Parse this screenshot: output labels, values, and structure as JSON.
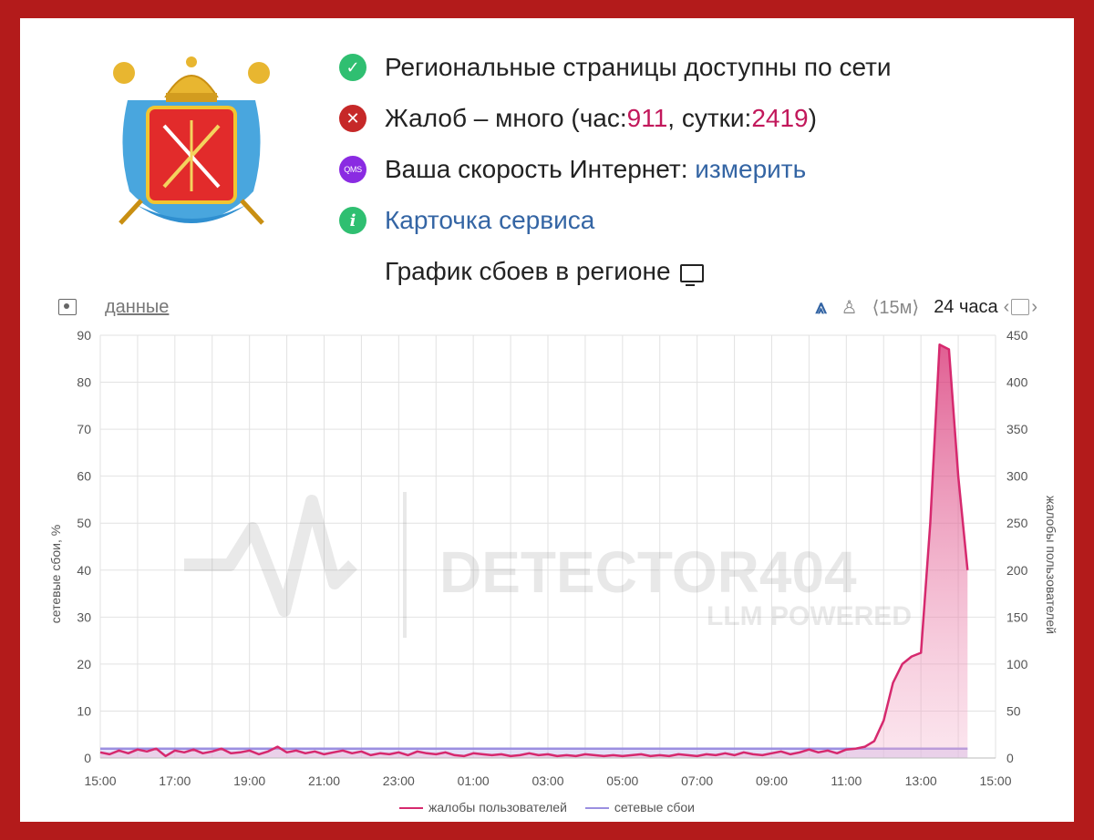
{
  "status": {
    "row1": "Региональные страницы доступны по сети",
    "row2_prefix": "Жалоб – много (час: ",
    "row2_hour": "911",
    "row2_mid": ", сутки: ",
    "row2_day": "2419",
    "row2_suffix": ")",
    "row3_prefix": "Ваша скорость Интернет: ",
    "row3_link": "измерить",
    "row3_icon": "QMS",
    "row4_link": "Карточка сервиса",
    "row4_icon": "i",
    "row5": "График сбоев в регионе"
  },
  "toolbar": {
    "data_link": "данные",
    "interval": "⟨15м⟩",
    "period": "24 часа"
  },
  "watermark": {
    "line1": "DETECTOR404",
    "line2": "LLM POWERED"
  },
  "colors": {
    "complaints": "#d6296e",
    "network": "#9b8fe0",
    "ok": "#2fbf71",
    "bad": "#c62828"
  },
  "chart_data": {
    "type": "area",
    "x": [
      "15:00",
      "15:15",
      "15:30",
      "15:45",
      "16:00",
      "16:15",
      "16:30",
      "16:45",
      "17:00",
      "17:15",
      "17:30",
      "17:45",
      "18:00",
      "18:15",
      "18:30",
      "18:45",
      "19:00",
      "19:15",
      "19:30",
      "19:45",
      "20:00",
      "20:15",
      "20:30",
      "20:45",
      "21:00",
      "21:15",
      "21:30",
      "21:45",
      "22:00",
      "22:15",
      "22:30",
      "22:45",
      "23:00",
      "23:15",
      "23:30",
      "23:45",
      "00:00",
      "00:15",
      "00:30",
      "00:45",
      "01:00",
      "01:15",
      "01:30",
      "01:45",
      "02:00",
      "02:15",
      "02:30",
      "02:45",
      "03:00",
      "03:15",
      "03:30",
      "03:45",
      "04:00",
      "04:15",
      "04:30",
      "04:45",
      "05:00",
      "05:15",
      "05:30",
      "05:45",
      "06:00",
      "06:15",
      "06:30",
      "06:45",
      "07:00",
      "07:15",
      "07:30",
      "07:45",
      "08:00",
      "08:15",
      "08:30",
      "08:45",
      "09:00",
      "09:15",
      "09:30",
      "09:45",
      "10:00",
      "10:15",
      "10:30",
      "10:45",
      "11:00",
      "11:15",
      "11:30",
      "11:45",
      "12:00",
      "12:15",
      "12:30",
      "12:45",
      "13:00",
      "13:15",
      "13:30",
      "13:45",
      "14:00",
      "14:15"
    ],
    "x_ticks": [
      "15:00",
      "17:00",
      "19:00",
      "21:00",
      "23:00",
      "01:00",
      "03:00",
      "05:00",
      "07:00",
      "09:00",
      "11:00",
      "13:00",
      "15:00"
    ],
    "series": [
      {
        "name": "жалобы пользователей",
        "axis": "right",
        "values": [
          6,
          4,
          8,
          5,
          9,
          7,
          10,
          2,
          8,
          6,
          9,
          5,
          7,
          10,
          5,
          6,
          8,
          4,
          7,
          12,
          6,
          8,
          5,
          7,
          4,
          6,
          8,
          5,
          7,
          3,
          5,
          4,
          6,
          3,
          7,
          5,
          4,
          6,
          3,
          2,
          5,
          4,
          3,
          4,
          2,
          3,
          5,
          3,
          4,
          2,
          3,
          2,
          4,
          3,
          2,
          3,
          2,
          3,
          4,
          2,
          3,
          2,
          4,
          3,
          2,
          4,
          3,
          5,
          3,
          6,
          4,
          3,
          5,
          7,
          4,
          6,
          9,
          6,
          8,
          5,
          9,
          10,
          12,
          18,
          40,
          80,
          100,
          108,
          112,
          250,
          440,
          435,
          300,
          200
        ]
      },
      {
        "name": "сетевые сбои",
        "axis": "left",
        "values": [
          2,
          2,
          2,
          2,
          2,
          2,
          2,
          2,
          2,
          2,
          2,
          2,
          2,
          2,
          2,
          2,
          2,
          2,
          2,
          2,
          2,
          2,
          2,
          2,
          2,
          2,
          2,
          2,
          2,
          2,
          2,
          2,
          2,
          2,
          2,
          2,
          2,
          2,
          2,
          2,
          2,
          2,
          2,
          2,
          2,
          2,
          2,
          2,
          2,
          2,
          2,
          2,
          2,
          2,
          2,
          2,
          2,
          2,
          2,
          2,
          2,
          2,
          2,
          2,
          2,
          2,
          2,
          2,
          2,
          2,
          2,
          2,
          2,
          2,
          2,
          2,
          2,
          2,
          2,
          2,
          2,
          2,
          2,
          2,
          2,
          2,
          2,
          2,
          2,
          2,
          2,
          2,
          2,
          2
        ]
      }
    ],
    "ylabel_left": "сетевые сбои, %",
    "ylabel_right": "жалобы пользователей",
    "ylim_left": [
      0,
      90
    ],
    "ylim_right": [
      0,
      450
    ],
    "yticks_left": [
      "0",
      "10",
      "20",
      "30",
      "40",
      "50",
      "60",
      "70",
      "80",
      "90"
    ],
    "yticks_right": [
      "0",
      "50",
      "100",
      "150",
      "200",
      "250",
      "300",
      "350",
      "400",
      "450"
    ],
    "grid": true,
    "legend": "bottom"
  }
}
